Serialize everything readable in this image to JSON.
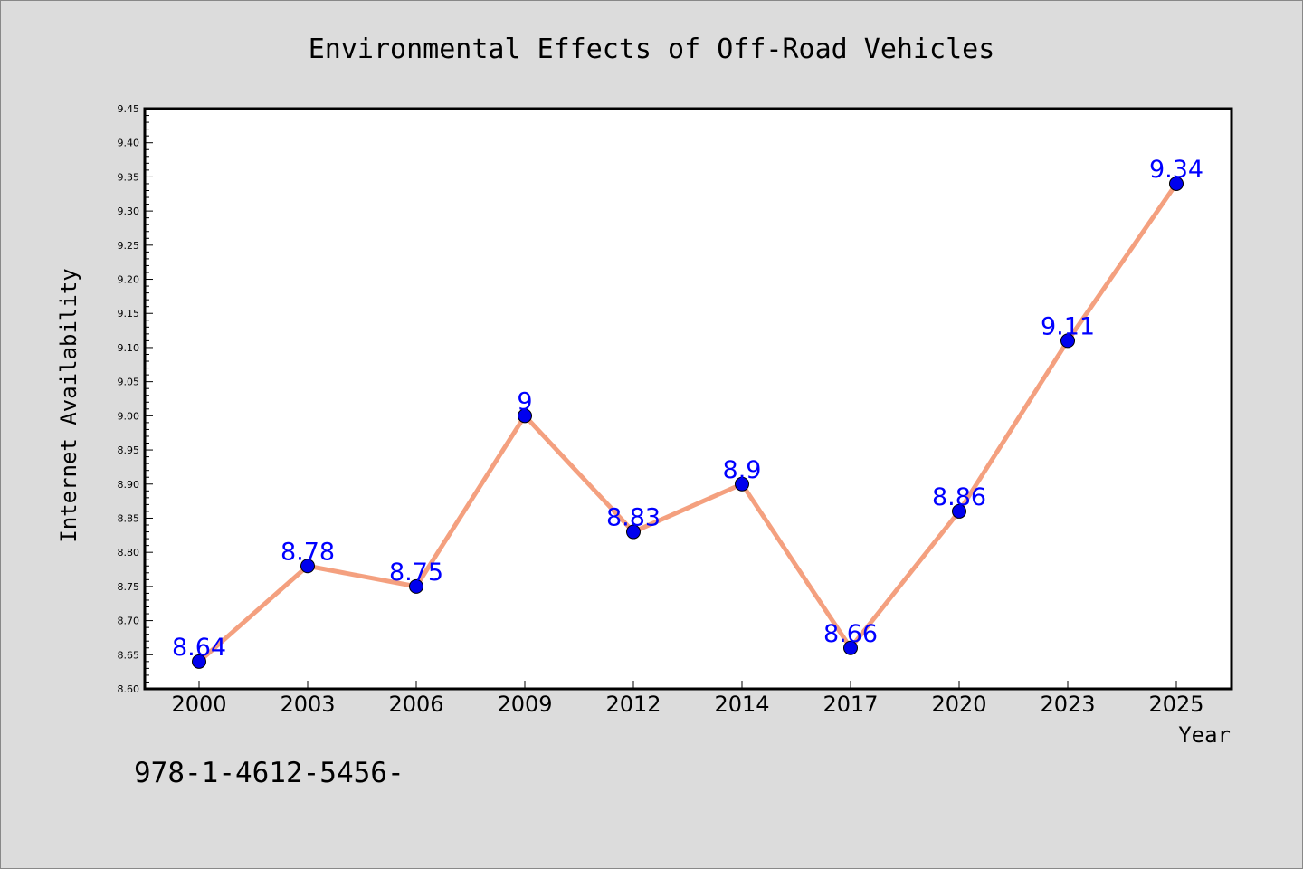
{
  "chart_data": {
    "type": "line",
    "title": "Environmental Effects of Off-Road Vehicles",
    "xlabel": "Year",
    "ylabel": "Internet Availability",
    "categories": [
      "2000",
      "2003",
      "2006",
      "2009",
      "2012",
      "2014",
      "2017",
      "2020",
      "2023",
      "2025"
    ],
    "series": [
      {
        "values": [
          8.64,
          8.78,
          8.75,
          9.0,
          8.83,
          8.9,
          8.66,
          8.86,
          9.11,
          9.34
        ],
        "labels": [
          "8.64",
          "8.78",
          "8.75",
          "9",
          "8.83",
          "8.9",
          "8.66",
          "8.86",
          "9.11",
          "9.34"
        ]
      }
    ],
    "ylim": [
      8.6,
      9.45
    ],
    "ytick_labels": [
      "8.60",
      "8.65",
      "8.70",
      "8.75",
      "8.80",
      "8.85",
      "8.90",
      "8.95",
      "9.00",
      "9.05",
      "9.10",
      "9.15",
      "9.20",
      "9.25",
      "9.30",
      "9.35",
      "9.40",
      "9.45"
    ],
    "grid": false,
    "colors": {
      "background": "#dcdcdc",
      "plot_area": "#ffffff",
      "line": "#f4a07f",
      "marker": "#0000ee",
      "data_label": "#0000ff"
    }
  },
  "footnote": "978-1-4612-5456-"
}
